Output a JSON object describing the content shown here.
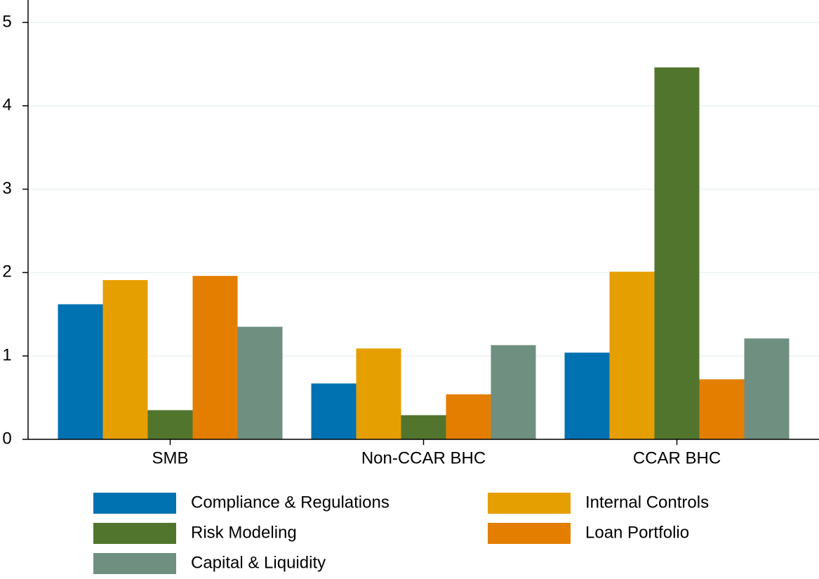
{
  "chart_data": {
    "type": "bar",
    "categories": [
      "SMB",
      "Non-CCAR BHC",
      "CCAR BHC"
    ],
    "series": [
      {
        "name": "Compliance & Regulations",
        "color": "#0072b2",
        "values": [
          1.62,
          0.67,
          1.04
        ]
      },
      {
        "name": "Internal Controls",
        "color": "#e69f00",
        "values": [
          1.91,
          1.09,
          2.01
        ]
      },
      {
        "name": "Risk Modeling",
        "color": "#52752d",
        "values": [
          0.35,
          0.29,
          4.46
        ]
      },
      {
        "name": "Loan Portfolio",
        "color": "#e37e00",
        "values": [
          1.96,
          0.54,
          0.72
        ]
      },
      {
        "name": "Capital & Liquidity",
        "color": "#6f8f81",
        "values": [
          1.35,
          1.13,
          1.21
        ]
      }
    ],
    "ylim": [
      0,
      5.05
    ],
    "yticks": [
      0,
      1,
      2,
      3,
      4,
      5
    ],
    "grid": true,
    "legend": "bottom"
  }
}
